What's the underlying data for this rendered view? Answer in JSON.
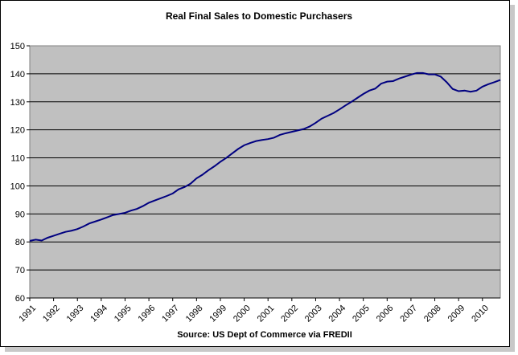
{
  "chart_data": {
    "type": "line",
    "title": "Real Final Sales to Domestic Purchasers",
    "source": "Source:  US Dept of Commerce via FREDII",
    "xlabel": "",
    "ylabel": "",
    "ylim": [
      60,
      150
    ],
    "yticks": [
      60,
      70,
      80,
      90,
      100,
      110,
      120,
      130,
      140,
      150
    ],
    "xlim": [
      1991.0,
      2010.75
    ],
    "xticks": [
      "1991",
      "1992",
      "1993",
      "1994",
      "1995",
      "1996",
      "1997",
      "1998",
      "1999",
      "2000",
      "2001",
      "2002",
      "2003",
      "2004",
      "2005",
      "2006",
      "2007",
      "2008",
      "2009",
      "2010"
    ],
    "grid": true,
    "legend": "none",
    "plot_bg": "#c0c0c0",
    "line_color": "#000080",
    "series": [
      {
        "x": [
          1991.0,
          1991.25,
          1991.5,
          1991.75,
          1992.0,
          1992.25,
          1992.5,
          1992.75,
          1993.0,
          1993.25,
          1993.5,
          1993.75,
          1994.0,
          1994.25,
          1994.5,
          1994.75,
          1995.0,
          1995.25,
          1995.5,
          1995.75,
          1996.0,
          1996.25,
          1996.5,
          1996.75,
          1997.0,
          1997.25,
          1997.5,
          1997.75,
          1998.0,
          1998.25,
          1998.5,
          1998.75,
          1999.0,
          1999.25,
          1999.5,
          1999.75,
          2000.0,
          2000.25,
          2000.5,
          2000.75,
          2001.0,
          2001.25,
          2001.5,
          2001.75,
          2002.0,
          2002.25,
          2002.5,
          2002.75,
          2003.0,
          2003.25,
          2003.5,
          2003.75,
          2004.0,
          2004.25,
          2004.5,
          2004.75,
          2005.0,
          2005.25,
          2005.5,
          2005.75,
          2006.0,
          2006.25,
          2006.5,
          2006.75,
          2007.0,
          2007.25,
          2007.5,
          2007.75,
          2008.0,
          2008.25,
          2008.5,
          2008.75,
          2009.0,
          2009.25,
          2009.5,
          2009.75,
          2010.0,
          2010.25,
          2010.5,
          2010.75
        ],
        "values": [
          80.4,
          80.8,
          80.5,
          81.5,
          82.2,
          82.9,
          83.6,
          84.0,
          84.6,
          85.5,
          86.6,
          87.3,
          88.0,
          88.8,
          89.6,
          90.0,
          90.4,
          91.2,
          91.8,
          92.8,
          94.0,
          94.8,
          95.6,
          96.4,
          97.3,
          98.8,
          99.6,
          100.8,
          102.7,
          104.0,
          105.6,
          107.0,
          108.6,
          110.0,
          111.6,
          113.2,
          114.5,
          115.3,
          116.0,
          116.4,
          116.7,
          117.2,
          118.2,
          118.8,
          119.3,
          119.8,
          120.3,
          121.2,
          122.5,
          124.0,
          125.0,
          126.0,
          127.3,
          128.7,
          130.0,
          131.4,
          132.8,
          134.0,
          134.7,
          136.5,
          137.2,
          137.4,
          138.3,
          139.0,
          139.7,
          140.3,
          140.3,
          139.8,
          139.8,
          139.0,
          137.0,
          134.6,
          133.8,
          134.0,
          133.6,
          134.0,
          135.4,
          136.3,
          137.0,
          137.8
        ]
      }
    ]
  }
}
